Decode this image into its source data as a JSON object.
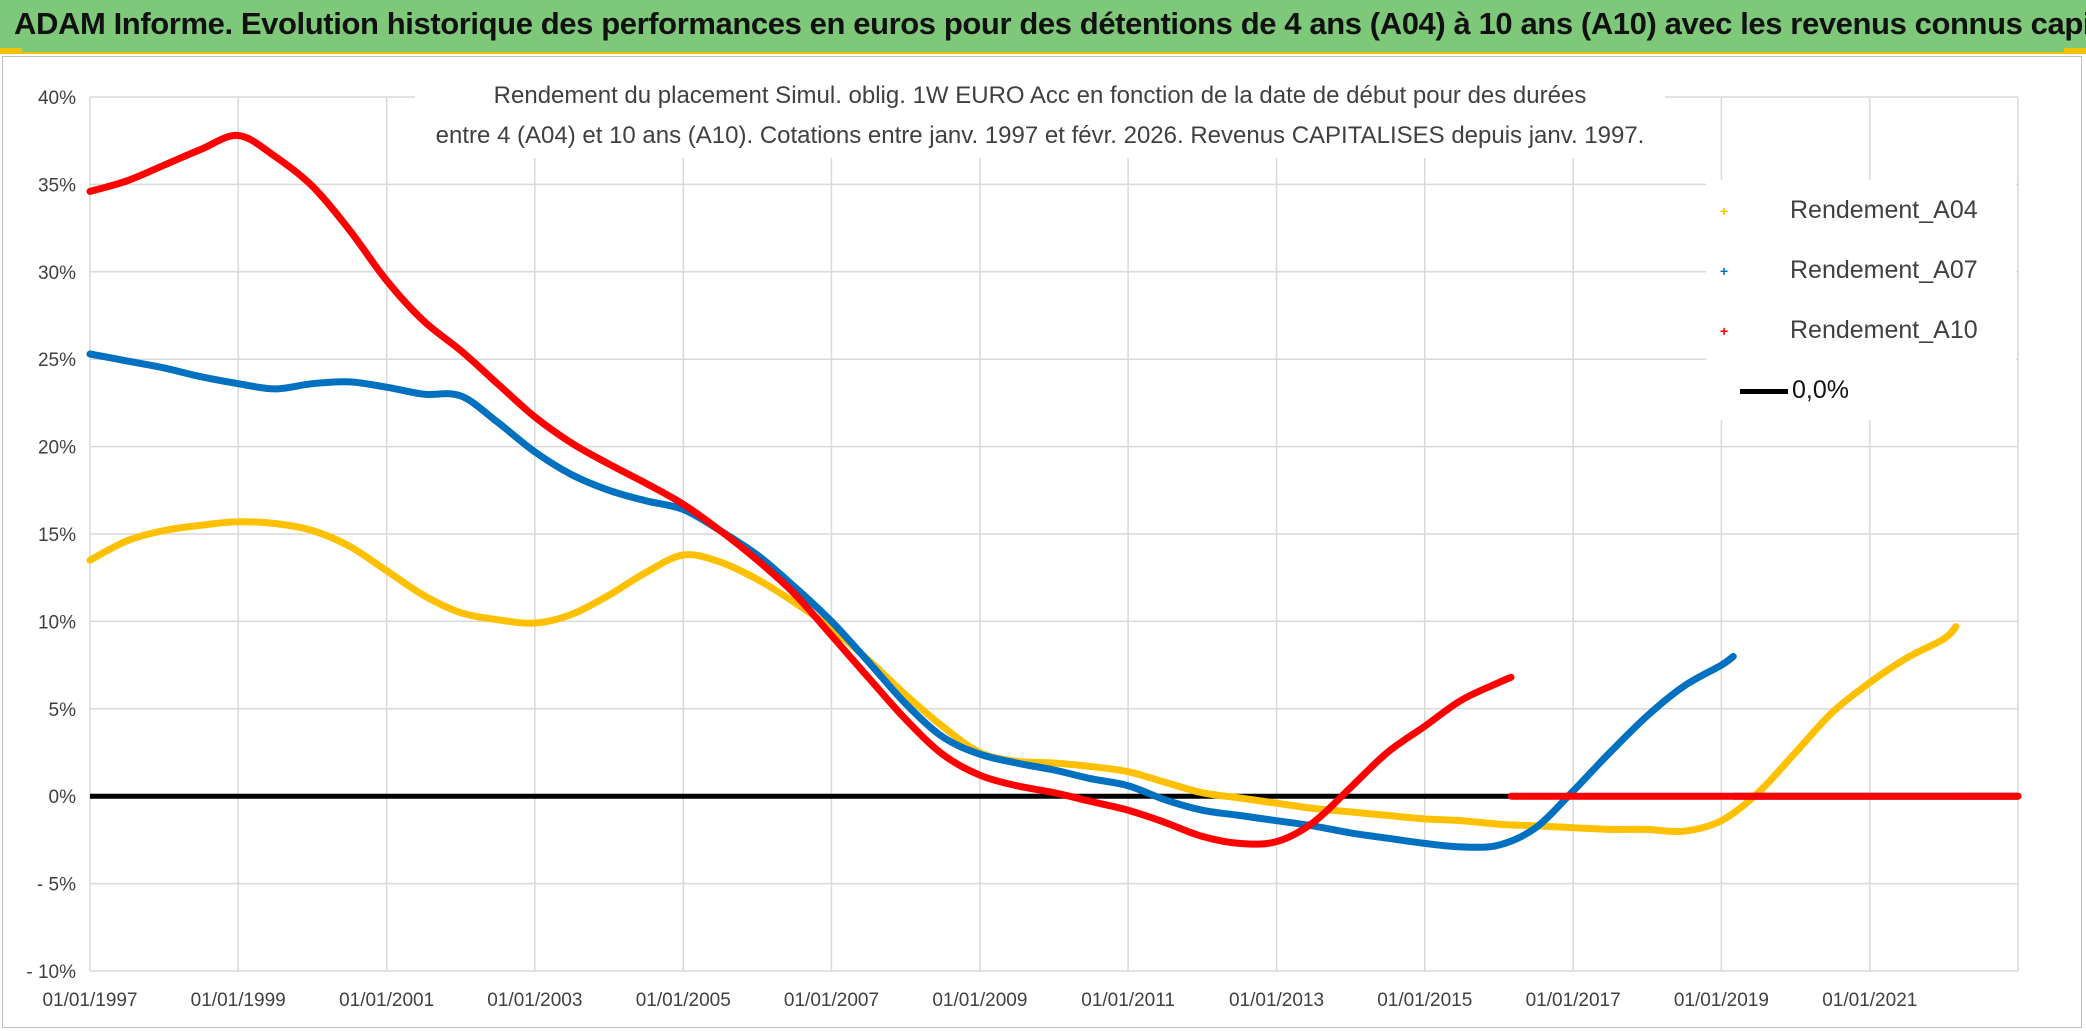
{
  "banner": {
    "title": "ADAM Informe. Evolution historique des performances en euros pour des détentions de 4 ans (A04) à 10 ans (A10) avec les revenus connus capitalisés"
  },
  "colors": {
    "banner_bg": "#7ec87a",
    "accent": "#f2c200",
    "A04": "#ffc000",
    "A07": "#0070c0",
    "A10": "#ff0000",
    "zero_line": "#000000"
  },
  "chart_data": {
    "type": "line",
    "title_lines": [
      "Rendement du placement Simul. oblig. 1W EURO Acc en fonction de la date de début pour des durées",
      "entre 4 (A04) et 10 ans (A10). Cotations entre janv. 1997 et févr. 2026. Revenus CAPITALISES depuis janv. 1997."
    ],
    "x_axis": {
      "start": "1997-01-01",
      "end": "2023-01-01",
      "tick_labels": [
        "01/01/1997",
        "01/01/1999",
        "01/01/2001",
        "01/01/2003",
        "01/01/2005",
        "01/01/2007",
        "01/01/2009",
        "01/01/2011",
        "01/01/2013",
        "01/01/2015",
        "01/01/2017",
        "01/01/2019",
        "01/01/2021"
      ]
    },
    "y_axis": {
      "min": -10,
      "max": 40,
      "step": 5,
      "unit": "%",
      "tick_labels": [
        "- 10%",
        "- 5%",
        "0%",
        "5%",
        "10%",
        "15%",
        "20%",
        "25%",
        "30%",
        "35%",
        "40%"
      ]
    },
    "grid": true,
    "legend_position": "right",
    "legend": [
      {
        "label": "Rendement_A04",
        "series": "A04"
      },
      {
        "label": "Rendement_A07",
        "series": "A07"
      },
      {
        "label": "Rendement_A10",
        "series": "A10"
      },
      {
        "label": "0,0%",
        "series": "zero"
      }
    ],
    "series": [
      {
        "name": "Rendement_A04",
        "key": "A04",
        "points": [
          [
            "1997-01-01",
            13.5
          ],
          [
            "1997-07-01",
            14.6
          ],
          [
            "1998-01-01",
            15.2
          ],
          [
            "1998-07-01",
            15.5
          ],
          [
            "1999-01-01",
            15.7
          ],
          [
            "1999-07-01",
            15.6
          ],
          [
            "2000-01-01",
            15.2
          ],
          [
            "2000-07-01",
            14.3
          ],
          [
            "2001-01-01",
            12.9
          ],
          [
            "2001-07-01",
            11.5
          ],
          [
            "2002-01-01",
            10.5
          ],
          [
            "2002-07-01",
            10.1
          ],
          [
            "2003-01-01",
            9.9
          ],
          [
            "2003-07-01",
            10.4
          ],
          [
            "2004-01-01",
            11.5
          ],
          [
            "2004-07-01",
            12.8
          ],
          [
            "2005-01-01",
            13.8
          ],
          [
            "2005-07-01",
            13.4
          ],
          [
            "2006-01-01",
            12.4
          ],
          [
            "2006-07-01",
            11.1
          ],
          [
            "2007-01-01",
            9.6
          ],
          [
            "2007-07-01",
            7.8
          ],
          [
            "2008-01-01",
            5.8
          ],
          [
            "2008-07-01",
            4.0
          ],
          [
            "2009-01-01",
            2.5
          ],
          [
            "2009-07-01",
            2.0
          ],
          [
            "2010-01-01",
            1.9
          ],
          [
            "2010-07-01",
            1.7
          ],
          [
            "2011-01-01",
            1.4
          ],
          [
            "2011-07-01",
            0.8
          ],
          [
            "2012-01-01",
            0.2
          ],
          [
            "2012-07-01",
            -0.1
          ],
          [
            "2013-01-01",
            -0.4
          ],
          [
            "2013-07-01",
            -0.7
          ],
          [
            "2014-01-01",
            -0.9
          ],
          [
            "2014-07-01",
            -1.1
          ],
          [
            "2015-01-01",
            -1.3
          ],
          [
            "2015-07-01",
            -1.4
          ],
          [
            "2016-01-01",
            -1.6
          ],
          [
            "2016-07-01",
            -1.7
          ],
          [
            "2017-01-01",
            -1.8
          ],
          [
            "2017-07-01",
            -1.9
          ],
          [
            "2018-01-01",
            -1.9
          ],
          [
            "2018-07-01",
            -2.0
          ],
          [
            "2019-01-01",
            -1.4
          ],
          [
            "2019-07-01",
            0.2
          ],
          [
            "2020-01-01",
            2.5
          ],
          [
            "2020-07-01",
            4.8
          ],
          [
            "2021-01-01",
            6.5
          ],
          [
            "2021-07-01",
            7.9
          ],
          [
            "2022-01-01",
            9.0
          ],
          [
            "2022-03-01",
            9.7
          ],
          [
            "2022-03-02",
            0
          ],
          [
            "2023-01-01",
            0
          ]
        ]
      },
      {
        "name": "Rendement_A07",
        "key": "A07",
        "points": [
          [
            "1997-01-01",
            25.3
          ],
          [
            "1997-07-01",
            24.9
          ],
          [
            "1998-01-01",
            24.5
          ],
          [
            "1998-07-01",
            24.0
          ],
          [
            "1999-01-01",
            23.6
          ],
          [
            "1999-07-01",
            23.3
          ],
          [
            "2000-01-01",
            23.6
          ],
          [
            "2000-07-01",
            23.7
          ],
          [
            "2001-01-01",
            23.4
          ],
          [
            "2001-07-01",
            23.0
          ],
          [
            "2002-01-01",
            22.9
          ],
          [
            "2002-07-01",
            21.4
          ],
          [
            "2003-01-01",
            19.7
          ],
          [
            "2003-07-01",
            18.4
          ],
          [
            "2004-01-01",
            17.5
          ],
          [
            "2004-07-01",
            16.9
          ],
          [
            "2005-01-01",
            16.4
          ],
          [
            "2005-07-01",
            15.2
          ],
          [
            "2006-01-01",
            13.8
          ],
          [
            "2006-07-01",
            12.0
          ],
          [
            "2007-01-01",
            10.0
          ],
          [
            "2007-07-01",
            7.7
          ],
          [
            "2008-01-01",
            5.3
          ],
          [
            "2008-07-01",
            3.4
          ],
          [
            "2009-01-01",
            2.4
          ],
          [
            "2009-07-01",
            1.9
          ],
          [
            "2010-01-01",
            1.5
          ],
          [
            "2010-07-01",
            1.0
          ],
          [
            "2011-01-01",
            0.6
          ],
          [
            "2011-07-01",
            -0.2
          ],
          [
            "2012-01-01",
            -0.8
          ],
          [
            "2012-07-01",
            -1.1
          ],
          [
            "2013-01-01",
            -1.4
          ],
          [
            "2013-07-01",
            -1.7
          ],
          [
            "2014-01-01",
            -2.1
          ],
          [
            "2014-07-01",
            -2.4
          ],
          [
            "2015-01-01",
            -2.7
          ],
          [
            "2015-07-01",
            -2.9
          ],
          [
            "2016-01-01",
            -2.8
          ],
          [
            "2016-07-01",
            -1.8
          ],
          [
            "2017-01-01",
            0.3
          ],
          [
            "2017-07-01",
            2.5
          ],
          [
            "2018-01-01",
            4.6
          ],
          [
            "2018-07-01",
            6.3
          ],
          [
            "2019-01-01",
            7.5
          ],
          [
            "2019-03-01",
            8.0
          ],
          [
            "2019-03-02",
            0
          ],
          [
            "2023-01-01",
            0
          ]
        ]
      },
      {
        "name": "Rendement_A10",
        "key": "A10",
        "points": [
          [
            "1997-01-01",
            34.6
          ],
          [
            "1997-07-01",
            35.2
          ],
          [
            "1998-01-01",
            36.1
          ],
          [
            "1998-07-01",
            37.0
          ],
          [
            "1999-01-01",
            37.8
          ],
          [
            "1999-07-01",
            36.6
          ],
          [
            "2000-01-01",
            34.9
          ],
          [
            "2000-07-01",
            32.4
          ],
          [
            "2001-01-01",
            29.5
          ],
          [
            "2001-07-01",
            27.2
          ],
          [
            "2002-01-01",
            25.5
          ],
          [
            "2002-07-01",
            23.6
          ],
          [
            "2003-01-01",
            21.7
          ],
          [
            "2003-07-01",
            20.2
          ],
          [
            "2004-01-01",
            19.0
          ],
          [
            "2004-07-01",
            17.9
          ],
          [
            "2005-01-01",
            16.7
          ],
          [
            "2005-07-01",
            15.2
          ],
          [
            "2006-01-01",
            13.5
          ],
          [
            "2006-07-01",
            11.6
          ],
          [
            "2007-01-01",
            9.2
          ],
          [
            "2007-07-01",
            6.8
          ],
          [
            "2008-01-01",
            4.4
          ],
          [
            "2008-07-01",
            2.4
          ],
          [
            "2009-01-01",
            1.2
          ],
          [
            "2009-07-01",
            0.6
          ],
          [
            "2010-01-01",
            0.2
          ],
          [
            "2010-07-01",
            -0.3
          ],
          [
            "2011-01-01",
            -0.8
          ],
          [
            "2011-07-01",
            -1.5
          ],
          [
            "2012-01-01",
            -2.3
          ],
          [
            "2012-07-01",
            -2.7
          ],
          [
            "2013-01-01",
            -2.6
          ],
          [
            "2013-07-01",
            -1.5
          ],
          [
            "2014-01-01",
            0.5
          ],
          [
            "2014-07-01",
            2.5
          ],
          [
            "2015-01-01",
            4.0
          ],
          [
            "2015-07-01",
            5.5
          ],
          [
            "2016-01-01",
            6.5
          ],
          [
            "2016-03-01",
            6.8
          ],
          [
            "2016-03-02",
            0
          ],
          [
            "2023-01-01",
            0
          ]
        ]
      }
    ]
  }
}
